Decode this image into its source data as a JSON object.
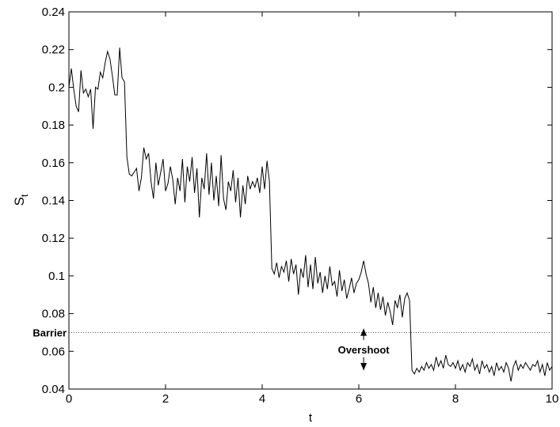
{
  "chart_data": {
    "type": "line",
    "xlabel": "t",
    "ylabel": "S",
    "ylabel_subscript": "t",
    "xlim": [
      0,
      10
    ],
    "xticks": [
      0,
      2,
      4,
      6,
      8,
      10
    ],
    "ylim": [
      0.04,
      0.24
    ],
    "yticks": [
      0.04,
      0.06,
      0.08,
      0.1,
      0.12,
      0.14,
      0.16,
      0.18,
      0.2,
      0.22,
      0.24
    ],
    "color": "#000000",
    "x": [
      0,
      0.05,
      0.1,
      0.15,
      0.2,
      0.25,
      0.3,
      0.35,
      0.4,
      0.45,
      0.5,
      0.55,
      0.6,
      0.65,
      0.7,
      0.75,
      0.8,
      0.85,
      0.9,
      0.95,
      1,
      1.05,
      1.1,
      1.15,
      1.2,
      1.25,
      1.3,
      1.35,
      1.4,
      1.45,
      1.5,
      1.55,
      1.6,
      1.65,
      1.7,
      1.75,
      1.8,
      1.85,
      1.9,
      1.95,
      2,
      2.05,
      2.1,
      2.15,
      2.2,
      2.25,
      2.3,
      2.35,
      2.4,
      2.45,
      2.5,
      2.55,
      2.6,
      2.65,
      2.7,
      2.75,
      2.8,
      2.85,
      2.9,
      2.95,
      3,
      3.05,
      3.1,
      3.15,
      3.2,
      3.25,
      3.3,
      3.35,
      3.4,
      3.45,
      3.5,
      3.55,
      3.6,
      3.65,
      3.7,
      3.75,
      3.8,
      3.85,
      3.9,
      3.95,
      4,
      4.05,
      4.1,
      4.15,
      4.2,
      4.25,
      4.3,
      4.35,
      4.4,
      4.45,
      4.5,
      4.55,
      4.6,
      4.65,
      4.7,
      4.75,
      4.8,
      4.85,
      4.9,
      4.95,
      5,
      5.05,
      5.1,
      5.15,
      5.2,
      5.25,
      5.3,
      5.35,
      5.4,
      5.45,
      5.5,
      5.55,
      5.6,
      5.65,
      5.7,
      5.75,
      5.8,
      5.85,
      5.9,
      5.95,
      6,
      6.05,
      6.1,
      6.15,
      6.2,
      6.25,
      6.3,
      6.35,
      6.4,
      6.45,
      6.5,
      6.55,
      6.6,
      6.65,
      6.7,
      6.75,
      6.8,
      6.85,
      6.9,
      6.95,
      7,
      7.05,
      7.1,
      7.15,
      7.2,
      7.25,
      7.3,
      7.35,
      7.4,
      7.45,
      7.5,
      7.55,
      7.6,
      7.65,
      7.7,
      7.75,
      7.8,
      7.85,
      7.9,
      7.95,
      8,
      8.05,
      8.1,
      8.15,
      8.2,
      8.25,
      8.3,
      8.35,
      8.4,
      8.45,
      8.5,
      8.55,
      8.6,
      8.65,
      8.7,
      8.75,
      8.8,
      8.85,
      8.9,
      8.95,
      9,
      9.05,
      9.1,
      9.15,
      9.2,
      9.25,
      9.3,
      9.35,
      9.4,
      9.45,
      9.5,
      9.55,
      9.6,
      9.65,
      9.7,
      9.75,
      9.8,
      9.85,
      9.9,
      9.95,
      10
    ],
    "values": [
      0.2,
      0.21,
      0.199,
      0.19,
      0.187,
      0.209,
      0.197,
      0.199,
      0.195,
      0.199,
      0.178,
      0.2,
      0.199,
      0.208,
      0.205,
      0.213,
      0.219,
      0.215,
      0.206,
      0.196,
      0.196,
      0.221,
      0.205,
      0.203,
      0.163,
      0.154,
      0.153,
      0.155,
      0.157,
      0.145,
      0.152,
      0.168,
      0.162,
      0.165,
      0.15,
      0.141,
      0.16,
      0.148,
      0.155,
      0.162,
      0.145,
      0.149,
      0.158,
      0.151,
      0.138,
      0.152,
      0.145,
      0.162,
      0.139,
      0.158,
      0.15,
      0.163,
      0.144,
      0.157,
      0.131,
      0.152,
      0.146,
      0.165,
      0.143,
      0.16,
      0.14,
      0.153,
      0.137,
      0.164,
      0.141,
      0.135,
      0.15,
      0.145,
      0.156,
      0.139,
      0.152,
      0.131,
      0.148,
      0.138,
      0.153,
      0.146,
      0.15,
      0.147,
      0.152,
      0.144,
      0.158,
      0.146,
      0.161,
      0.15,
      0.104,
      0.101,
      0.107,
      0.099,
      0.105,
      0.102,
      0.108,
      0.097,
      0.109,
      0.101,
      0.106,
      0.09,
      0.104,
      0.099,
      0.111,
      0.094,
      0.106,
      0.093,
      0.11,
      0.096,
      0.102,
      0.091,
      0.1,
      0.093,
      0.105,
      0.095,
      0.097,
      0.089,
      0.103,
      0.092,
      0.098,
      0.088,
      0.093,
      0.099,
      0.091,
      0.096,
      0.098,
      0.102,
      0.108,
      0.101,
      0.096,
      0.086,
      0.094,
      0.083,
      0.091,
      0.082,
      0.089,
      0.079,
      0.086,
      0.081,
      0.074,
      0.087,
      0.083,
      0.09,
      0.078,
      0.088,
      0.091,
      0.087,
      0.05,
      0.048,
      0.051,
      0.049,
      0.052,
      0.05,
      0.054,
      0.051,
      0.053,
      0.05,
      0.057,
      0.052,
      0.055,
      0.051,
      0.058,
      0.053,
      0.052,
      0.054,
      0.051,
      0.055,
      0.05,
      0.053,
      0.049,
      0.054,
      0.052,
      0.056,
      0.05,
      0.053,
      0.048,
      0.055,
      0.051,
      0.053,
      0.049,
      0.052,
      0.047,
      0.054,
      0.05,
      0.052,
      0.049,
      0.054,
      0.051,
      0.044,
      0.052,
      0.055,
      0.05,
      0.053,
      0.051,
      0.054,
      0.052,
      0.05,
      0.053,
      0.052,
      0.055,
      0.049,
      0.053,
      0.047,
      0.054,
      0.05,
      0.052
    ],
    "barrier": {
      "label": "Barrier",
      "y": 0.07
    },
    "overshoot": {
      "label": "Overshoot",
      "x": 6.1,
      "y": 0.061,
      "top": 0.072,
      "bottom": 0.05
    }
  }
}
